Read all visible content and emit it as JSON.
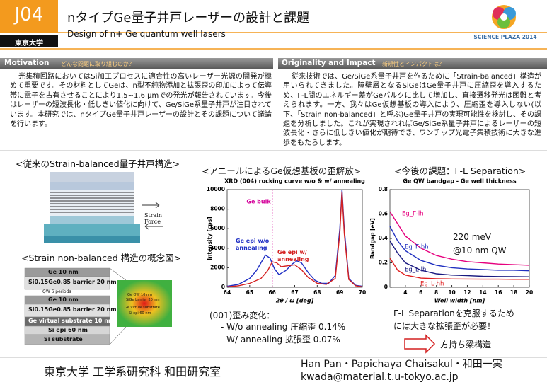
{
  "header": {
    "code": "J04",
    "university": "東京大学",
    "title": "nタイプGe量子井戸レーザーの設計と課題",
    "subtitle": "Design of n+ Ge quantum well lasers",
    "logo": "SCIENCE PLAZA 2014"
  },
  "motivation": {
    "heading": "Motivation",
    "subheading": "どんな問題に取り組むのか？",
    "body": "光集積回路においてはSi加工プロセスに適合性の高いレーザー光源の開発が極めて重要です。その材料としてGeは、n型不純物添加と拡張歪の印加によって伝導帯に電子を占有させることにより1.5~1.6 µmでの発光が報告されています。今後はレーザーの短波長化・低しきい値化に向けて、Ge/SiGe系量子井戸が注目されています。本研究では、nタイプGe量子井戸レーザーの設計とその課題について議論を行います。"
  },
  "originality": {
    "heading": "Originality and Impact",
    "subheading": "新規性とインパクトは？",
    "body": "従来技術では、Ge/SiGe系量子井戸を作るために「Strain-balanced」構造が用いられてきました。障壁層となるSiGeはGe量子井戸に圧縮歪を導入するため、Γ-L間のエネルギー差がGeバルクに比して増加し、直接遷移発光は困難と考えられます。一方、我々はGe仮想基板の導入により、圧縮歪を導入しない(以下、「Strain non-balanced」と呼ぶ)Ge量子井戸の実現可能性を検討し、その課題を分析しました。これが実現されればGe/SiGe系量子井戸によるレーザーの短波長化・さらに低しきい値化が期待でき、ワンチップ光電子集積技術に大きな進歩をもたらします。"
  },
  "strain_section": {
    "title1": "<従来のStrain-balanced量子井戸構造>",
    "strain_force": "Strain Force",
    "title2": "<Strain non-balanced 構造の概念図>",
    "layers": [
      "Ge 10 nm",
      "Si0.15Ge0.85 barrier 20 nm",
      "Ge 10 nm",
      "Si0.15Ge0.85 barrier 20 nm",
      "Ge virtual substrate 10 nm",
      "Si epi 60 nm",
      "Si substrate"
    ],
    "qw_periods": "QW 6 periods",
    "sim_labels": [
      "Ge QW 10 nm",
      "SiGe barrier 20 nm",
      "Ge virtual substrate",
      "Si epi 60 nm"
    ]
  },
  "anneal_section": {
    "title": "<アニールによるGe仮想基板の歪解放>",
    "chart": {
      "type": "line",
      "title": "XRD (004) rocking curve w/o & w/ annealing",
      "x_label": "2θ / ω [deg]",
      "y_label": "Intensity [cps]",
      "xlim": [
        64,
        70
      ],
      "xticks": [
        64,
        65,
        66,
        67,
        68,
        69,
        70
      ],
      "ylim": [
        0,
        10000
      ],
      "yticks": [
        0,
        2000,
        4000,
        6000,
        8000,
        10000
      ],
      "reference_line": {
        "label": "Ge bulk",
        "x": 66.0,
        "color": "#d4009a"
      },
      "series": [
        {
          "name": "Ge epi w/o annealing",
          "color": "#1f2fc4",
          "x": [
            64,
            64.5,
            65,
            65.3,
            65.5,
            65.7,
            65.9,
            66.1,
            66.3,
            66.6,
            66.9,
            67.1,
            67.3,
            67.6,
            67.9,
            68.2,
            68.5,
            68.8,
            69.0,
            69.1,
            69.2,
            69.4,
            69.7,
            70
          ],
          "values": [
            100,
            300,
            900,
            1700,
            2500,
            3300,
            3000,
            1900,
            1300,
            1700,
            2400,
            2700,
            2500,
            1500,
            700,
            400,
            400,
            1200,
            6000,
            10000,
            6000,
            900,
            200,
            100
          ]
        },
        {
          "name": "Ge epi w/ annealing",
          "color": "#d42020",
          "x": [
            64,
            64.5,
            65,
            65.5,
            65.8,
            66.0,
            66.2,
            66.4,
            66.7,
            67.0,
            67.3,
            67.6,
            68,
            68.4,
            68.8,
            69.0,
            69.1,
            69.2,
            69.4,
            69.7,
            70
          ],
          "values": [
            50,
            150,
            400,
            900,
            1700,
            2600,
            2500,
            2100,
            2200,
            2300,
            1800,
            1000,
            400,
            300,
            900,
            5500,
            9800,
            5500,
            800,
            150,
            50
          ]
        }
      ],
      "annotation_lines": [
        "Ge epi w/o",
        "annealing",
        "Ge epi w/",
        "annealing"
      ]
    },
    "strain_heading": "(001)歪み変化：",
    "strain_lines": [
      "- W/o annealing 圧縮歪 0.14%",
      "- W/ annealing 拡張歪 0.07%"
    ]
  },
  "future_section": {
    "title": "<今後の課題：Γ-L Separation>",
    "chart": {
      "type": "line",
      "title": "Ge QW bandgap - Ge well thickness",
      "x_label": "Well width [nm]",
      "y_label": "Bandgap [eV]",
      "xlim": [
        2,
        20
      ],
      "xticks": [
        4,
        6,
        8,
        10,
        12,
        14,
        16,
        18,
        20
      ],
      "ylim": [
        0,
        0.8
      ],
      "yticks": [
        0,
        0.2,
        0.4,
        0.6,
        0.8
      ],
      "x": [
        2,
        3,
        4,
        6,
        8,
        10,
        12,
        14,
        16,
        18,
        20
      ],
      "series": [
        {
          "name": "Eg_Γ-lh",
          "color": "#e6007e",
          "values": [
            0.62,
            0.52,
            0.42,
            0.32,
            0.26,
            0.23,
            0.21,
            0.2,
            0.19,
            0.185,
            0.18
          ]
        },
        {
          "name": "Eg_Γ-hh",
          "color": "#2030c0",
          "values": [
            0.5,
            0.38,
            0.3,
            0.22,
            0.18,
            0.16,
            0.15,
            0.145,
            0.14,
            0.14,
            0.135
          ]
        },
        {
          "name": "Eg_L-lh",
          "color": "#1a1a80",
          "values": [
            0.38,
            0.28,
            0.2,
            0.14,
            0.11,
            0.1,
            0.095,
            0.09,
            0.088,
            0.087,
            0.086
          ]
        },
        {
          "name": "Eg_L-hh",
          "color": "#e02020",
          "values": [
            0.24,
            0.14,
            0.1,
            0.075,
            0.07,
            0.068,
            0.067,
            0.066,
            0.066,
            0.065,
            0.065
          ]
        }
      ],
      "annotation_lines": [
        "220 meV",
        "@10 nm QW"
      ]
    },
    "conclusion": [
      "Γ-L Separationを克服するため",
      "には大きな拡張歪が必要！"
    ],
    "proposal": "方持ち梁構造"
  },
  "footer": {
    "lab": "東京大学 工学系研究科 和田研究室",
    "authors": "Han Pan・Papichaya Chaisakul・和田一実",
    "email": "kwada@material.t.u-tokyo.ac.jp"
  }
}
